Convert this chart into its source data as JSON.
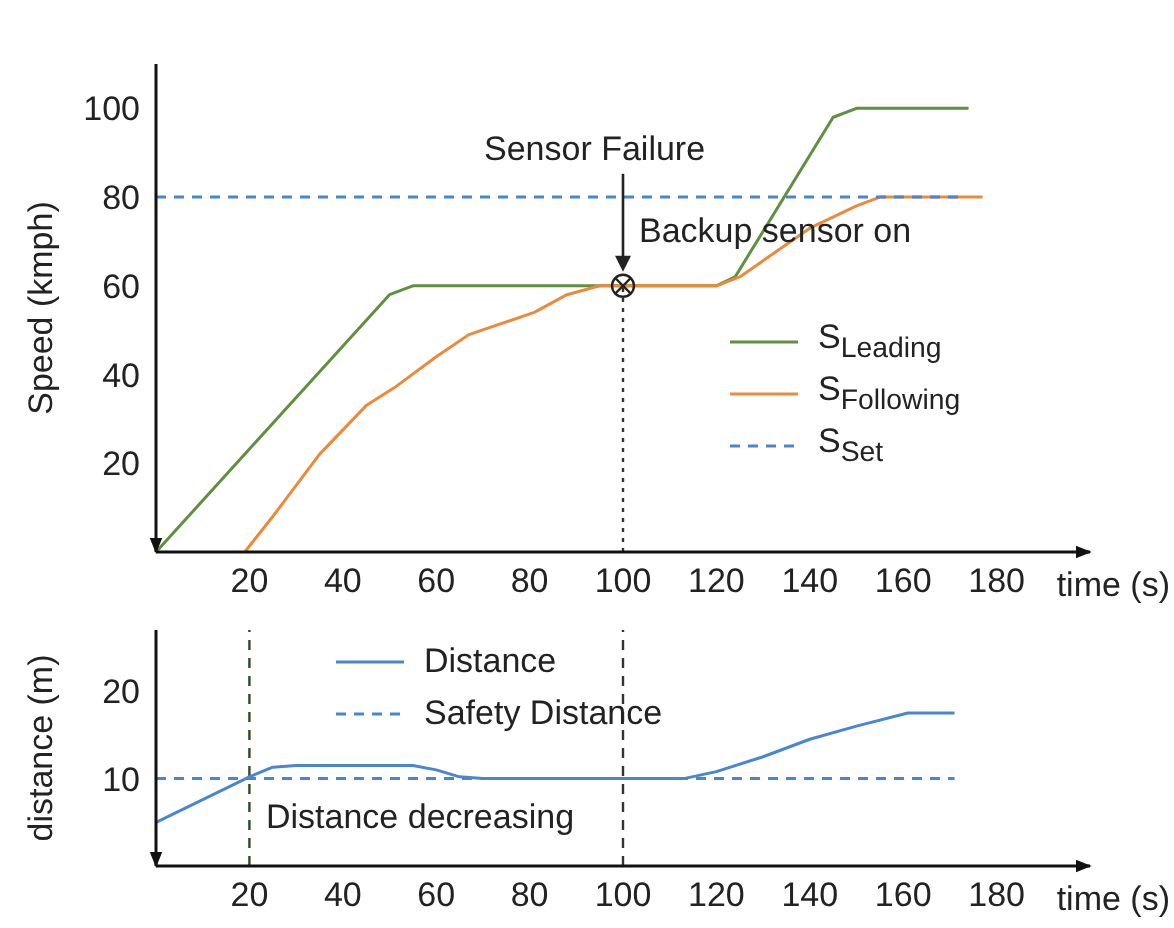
{
  "chart_data": [
    {
      "type": "line",
      "xlabel": "time (s)",
      "ylabel": "Speed (kmph)",
      "xlim": [
        0,
        200
      ],
      "xticks": [
        20,
        40,
        60,
        80,
        100,
        120,
        140,
        160,
        180
      ],
      "ylim": [
        0,
        110
      ],
      "yticks": [
        20,
        40,
        60,
        80,
        100
      ],
      "legend": "right",
      "marker": "none",
      "series": [
        {
          "name": "S$_{Leading}$",
          "color": "#5e9040",
          "line_style": "solid",
          "x": [
            0,
            50,
            55,
            120,
            124,
            145,
            150,
            174
          ],
          "values": [
            0,
            58,
            60,
            60,
            62,
            98,
            100,
            100
          ]
        },
        {
          "name": "S$_{Following}$",
          "color": "#ec8a3c",
          "line_style": "solid",
          "x": [
            19,
            25,
            35,
            45,
            51,
            60,
            67,
            81,
            88,
            95,
            120,
            125,
            140,
            150,
            155,
            177
          ],
          "values": [
            0,
            8,
            22,
            33,
            37,
            44,
            49,
            54,
            58,
            60,
            60,
            62,
            73,
            78,
            80,
            80
          ]
        },
        {
          "name": "S$_{Set}$",
          "color": "#4a86d0",
          "line_style": "dashed",
          "x": [
            0,
            173
          ],
          "values": [
            80,
            80
          ]
        }
      ],
      "ref_lines": [
        {
          "axis": "x",
          "value": 100,
          "color": "#333333",
          "line_style": "dotted"
        }
      ],
      "annotations": [
        "Sensor Failure",
        {
          "text": "Backup sensor on",
          "x": 100,
          "y": 60
        }
      ]
    },
    {
      "type": "line",
      "xlabel": "time (s)",
      "ylabel": "distance (m)",
      "xlim": [
        0,
        200
      ],
      "xticks": [
        20,
        40,
        60,
        80,
        100,
        120,
        140,
        160,
        180
      ],
      "ylim": [
        0,
        27
      ],
      "yticks": [
        10,
        20
      ],
      "legend": "top",
      "marker": "none",
      "series": [
        {
          "name": "Distance",
          "color": "#4a86d0",
          "line_style": "solid",
          "x": [
            0,
            20,
            25,
            30,
            55,
            60,
            65,
            70,
            113,
            120,
            130,
            140,
            150,
            161,
            171
          ],
          "values": [
            5,
            10.2,
            11.3,
            11.5,
            11.5,
            11,
            10.2,
            10,
            10,
            10.8,
            12.5,
            14.5,
            16,
            17.5,
            17.5
          ]
        },
        {
          "name": "Safety Distance",
          "color": "#4a86d0",
          "line_style": "dashed",
          "x": [
            0,
            171
          ],
          "values": [
            10,
            10
          ]
        }
      ],
      "ref_lines": [
        {
          "axis": "x",
          "value": 20,
          "color": "#2e4a20",
          "line_style": "dashed"
        },
        {
          "axis": "x",
          "value": 100,
          "color": "#333333",
          "line_style": "dashed"
        }
      ],
      "annotations": [
        "Distance decreasing"
      ]
    }
  ]
}
